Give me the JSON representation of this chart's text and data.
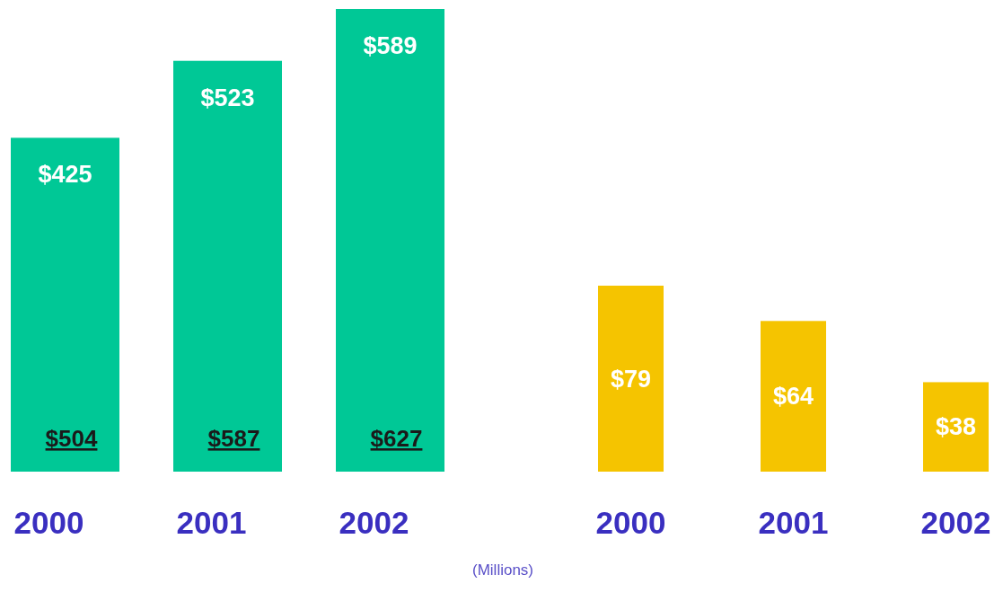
{
  "chart_data": [
    {
      "type": "bar",
      "categories": [
        "2000",
        "2001",
        "2002"
      ],
      "values": [
        425,
        523,
        589
      ],
      "color": "#00c896",
      "value_labels": [
        "$425",
        "$523",
        "$589"
      ],
      "tick_labels": "x",
      "annotations": [
        {
          "text": "$504",
          "x": "2000",
          "y": 0
        },
        {
          "text": "$587",
          "x": "2001",
          "y": 0
        },
        {
          "text": "$627",
          "x": "2002",
          "y": 0
        },
        "(Millions)"
      ]
    },
    {
      "type": "bar",
      "categories": [
        "2000",
        "2001",
        "2002"
      ],
      "values": [
        79,
        64,
        38
      ],
      "color": "#f5c400",
      "value_labels": [
        "$79",
        "$64",
        "$38"
      ],
      "tick_labels": "x"
    }
  ]
}
